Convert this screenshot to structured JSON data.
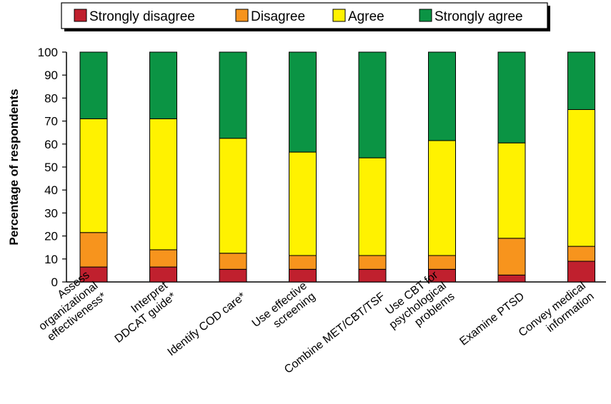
{
  "chart_data": {
    "type": "bar",
    "stacked": true,
    "title": "",
    "xlabel": "",
    "ylabel": "Percentage of respondents",
    "ylim": [
      0,
      100
    ],
    "yticks": [
      0,
      10,
      20,
      30,
      40,
      50,
      60,
      70,
      80,
      90,
      100
    ],
    "grid": false,
    "legend_position": "top",
    "categories": [
      [
        "Assess",
        "organizational",
        "effectiveness*"
      ],
      [
        "Interpret",
        "DDCAT guide*"
      ],
      [
        "Identify COD care*"
      ],
      [
        "Use effective",
        "screening"
      ],
      [
        "Combine MET/CBT/TSF"
      ],
      [
        "Use CBT for",
        "psychological",
        "problems"
      ],
      [
        "Examine PTSD"
      ],
      [
        "Convey medical",
        "information"
      ]
    ],
    "series": [
      {
        "name": "Strongly disagree",
        "color": "#c0202e",
        "values": [
          6.5,
          6.5,
          5.5,
          5.5,
          5.5,
          5.5,
          3,
          9
        ]
      },
      {
        "name": "Disagree",
        "color": "#f7941d",
        "values": [
          15,
          7.5,
          7,
          6,
          6,
          6,
          16,
          6.5
        ]
      },
      {
        "name": "Agree",
        "color": "#fff200",
        "values": [
          49.5,
          57,
          50,
          45,
          42.5,
          50,
          41.5,
          59.5
        ]
      },
      {
        "name": "Strongly agree",
        "color": "#0b9444",
        "values": [
          29,
          29,
          37.5,
          43.5,
          46,
          38.5,
          39.5,
          25
        ]
      }
    ]
  }
}
